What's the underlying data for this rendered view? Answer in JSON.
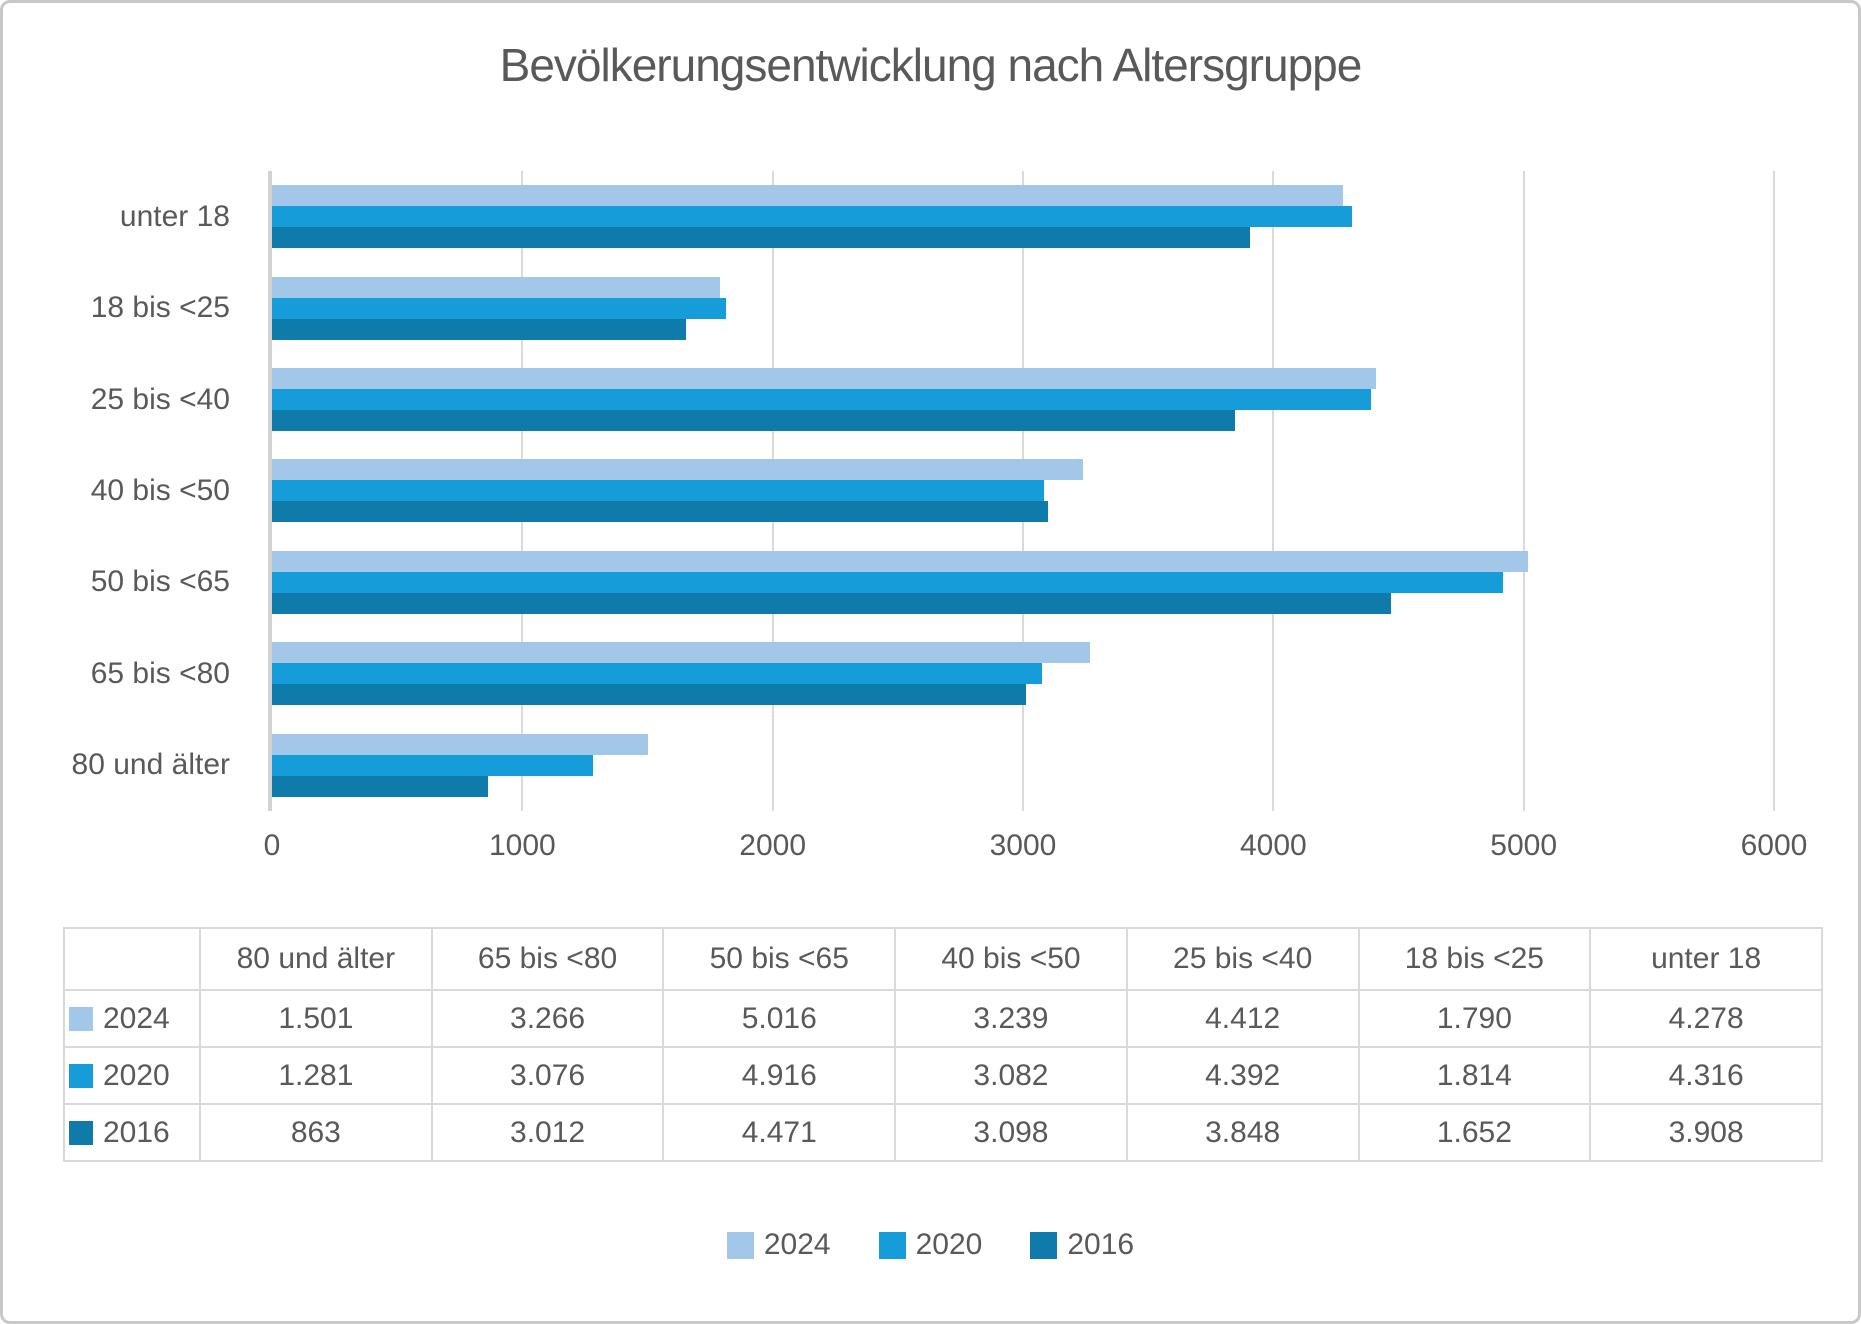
{
  "title": "Bevölkerungsentwicklung nach Altersgruppe",
  "chart_data": {
    "type": "bar",
    "orientation": "horizontal",
    "title": "Bevölkerungsentwicklung nach Altersgruppe",
    "categories": [
      "unter 18",
      "18 bis <25",
      "25 bis <40",
      "40 bis <50",
      "50 bis <65",
      "65 bis <80",
      "80 und älter"
    ],
    "series": [
      {
        "name": "2024",
        "color": "#a3c7e8",
        "values": [
          4278,
          1790,
          4412,
          3239,
          5016,
          3266,
          1501
        ]
      },
      {
        "name": "2020",
        "color": "#169cd8",
        "values": [
          4316,
          1814,
          4392,
          3082,
          4916,
          3076,
          1281
        ]
      },
      {
        "name": "2016",
        "color": "#0f7bab",
        "values": [
          3908,
          1652,
          3848,
          3098,
          4471,
          3012,
          863
        ]
      }
    ],
    "xlabel": "",
    "ylabel": "",
    "xlim": [
      0,
      6000
    ],
    "xticks": [
      "0",
      "1000",
      "2000",
      "3000",
      "4000",
      "5000",
      "6000"
    ],
    "grid": true,
    "legend_position": "bottom",
    "legend_entries": [
      "2024",
      "2020",
      "2016"
    ]
  },
  "table": {
    "columns": [
      "80 und älter",
      "65 bis <80",
      "50 bis <65",
      "40 bis <50",
      "25 bis <40",
      "18 bis <25",
      "unter 18"
    ],
    "rows": [
      {
        "year": "2024",
        "values": [
          "1.501",
          "3.266",
          "5.016",
          "3.239",
          "4.412",
          "1.790",
          "4.278"
        ]
      },
      {
        "year": "2020",
        "values": [
          "1.281",
          "3.076",
          "4.916",
          "3.082",
          "4.392",
          "1.814",
          "4.316"
        ]
      },
      {
        "year": "2016",
        "values": [
          "863",
          "3.012",
          "4.471",
          "3.098",
          "3.848",
          "1.652",
          "3.908"
        ]
      }
    ]
  },
  "style": {
    "text_color": "#595959",
    "grid_color": "#dadada",
    "axis_color": "#d2d2d2",
    "table_border_color": "#d9d9d9"
  }
}
